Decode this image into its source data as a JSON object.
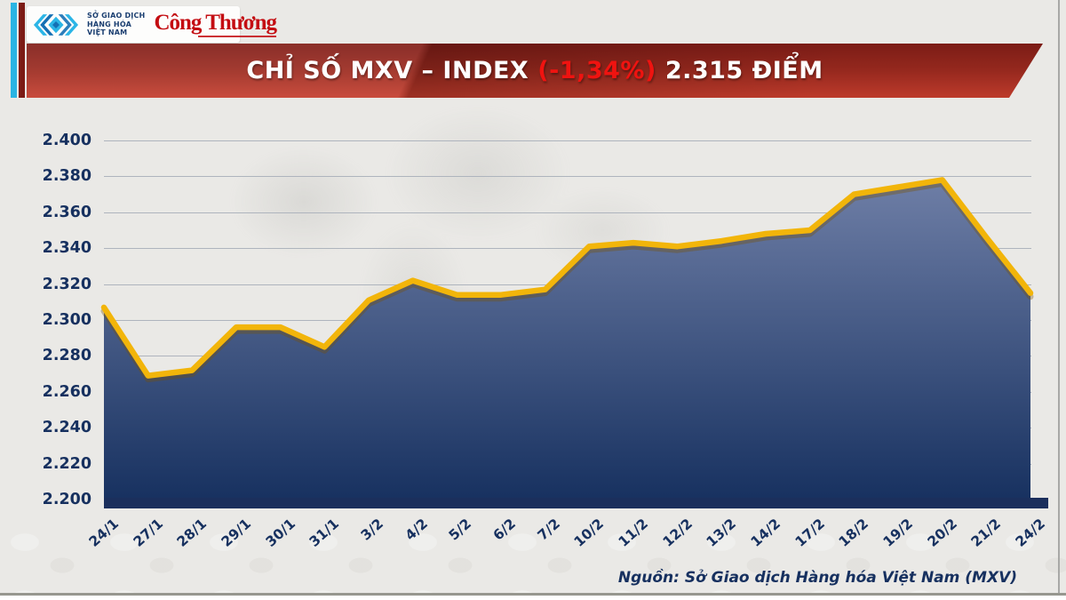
{
  "header": {
    "logo_bar": {
      "exchange_lines": [
        "SỞ GIAO DỊCH",
        "HÀNG HÓA",
        "VIỆT NAM"
      ],
      "newspaper": "Công Thương"
    },
    "banner": {
      "title_main": "CHỈ SỐ MXV – INDEX",
      "change_percent": "(-1,34%)",
      "points_text": "2.315 ĐIỂM",
      "change_color": "#ef1310",
      "banner_colors": [
        "#801d17",
        "#c53d2d"
      ]
    }
  },
  "footer": {
    "source_note": "Nguồn: Sở Giao dịch Hàng hóa Việt Nam (MXV)"
  },
  "chart_data": {
    "type": "area",
    "title": "CHỈ SỐ MXV – INDEX (-1,34%) 2.315 ĐIỂM",
    "xlabel": "",
    "ylabel": "",
    "categories": [
      "24/1",
      "27/1",
      "28/1",
      "29/1",
      "30/1",
      "31/1",
      "3/2",
      "4/2",
      "5/2",
      "6/2",
      "7/2",
      "10/2",
      "11/2",
      "12/2",
      "13/2",
      "14/2",
      "17/2",
      "18/2",
      "19/2",
      "20/2",
      "21/2",
      "24/2"
    ],
    "values": [
      2307,
      2269,
      2272,
      2296,
      2296,
      2285,
      2311,
      2322,
      2314,
      2314,
      2317,
      2341,
      2343,
      2341,
      2344,
      2348,
      2350,
      2370,
      2374,
      2378,
      2346,
      2315
    ],
    "ylim": [
      2200,
      2400
    ],
    "y_tick_labels": [
      "2.400",
      "2.380",
      "2.360",
      "2.340",
      "2.320",
      "2.300",
      "2.280",
      "2.260",
      "2.240",
      "2.220",
      "2.200"
    ],
    "grid": true,
    "legend": false,
    "line_color": "#f2b50a",
    "line_shadow_color": "rgba(120,80,0,0.35)",
    "area_gradient_top": "#6e7ea6",
    "area_gradient_bottom": "#16305f",
    "axis_color": "#1b2f5c",
    "label_color": "#16305f"
  }
}
